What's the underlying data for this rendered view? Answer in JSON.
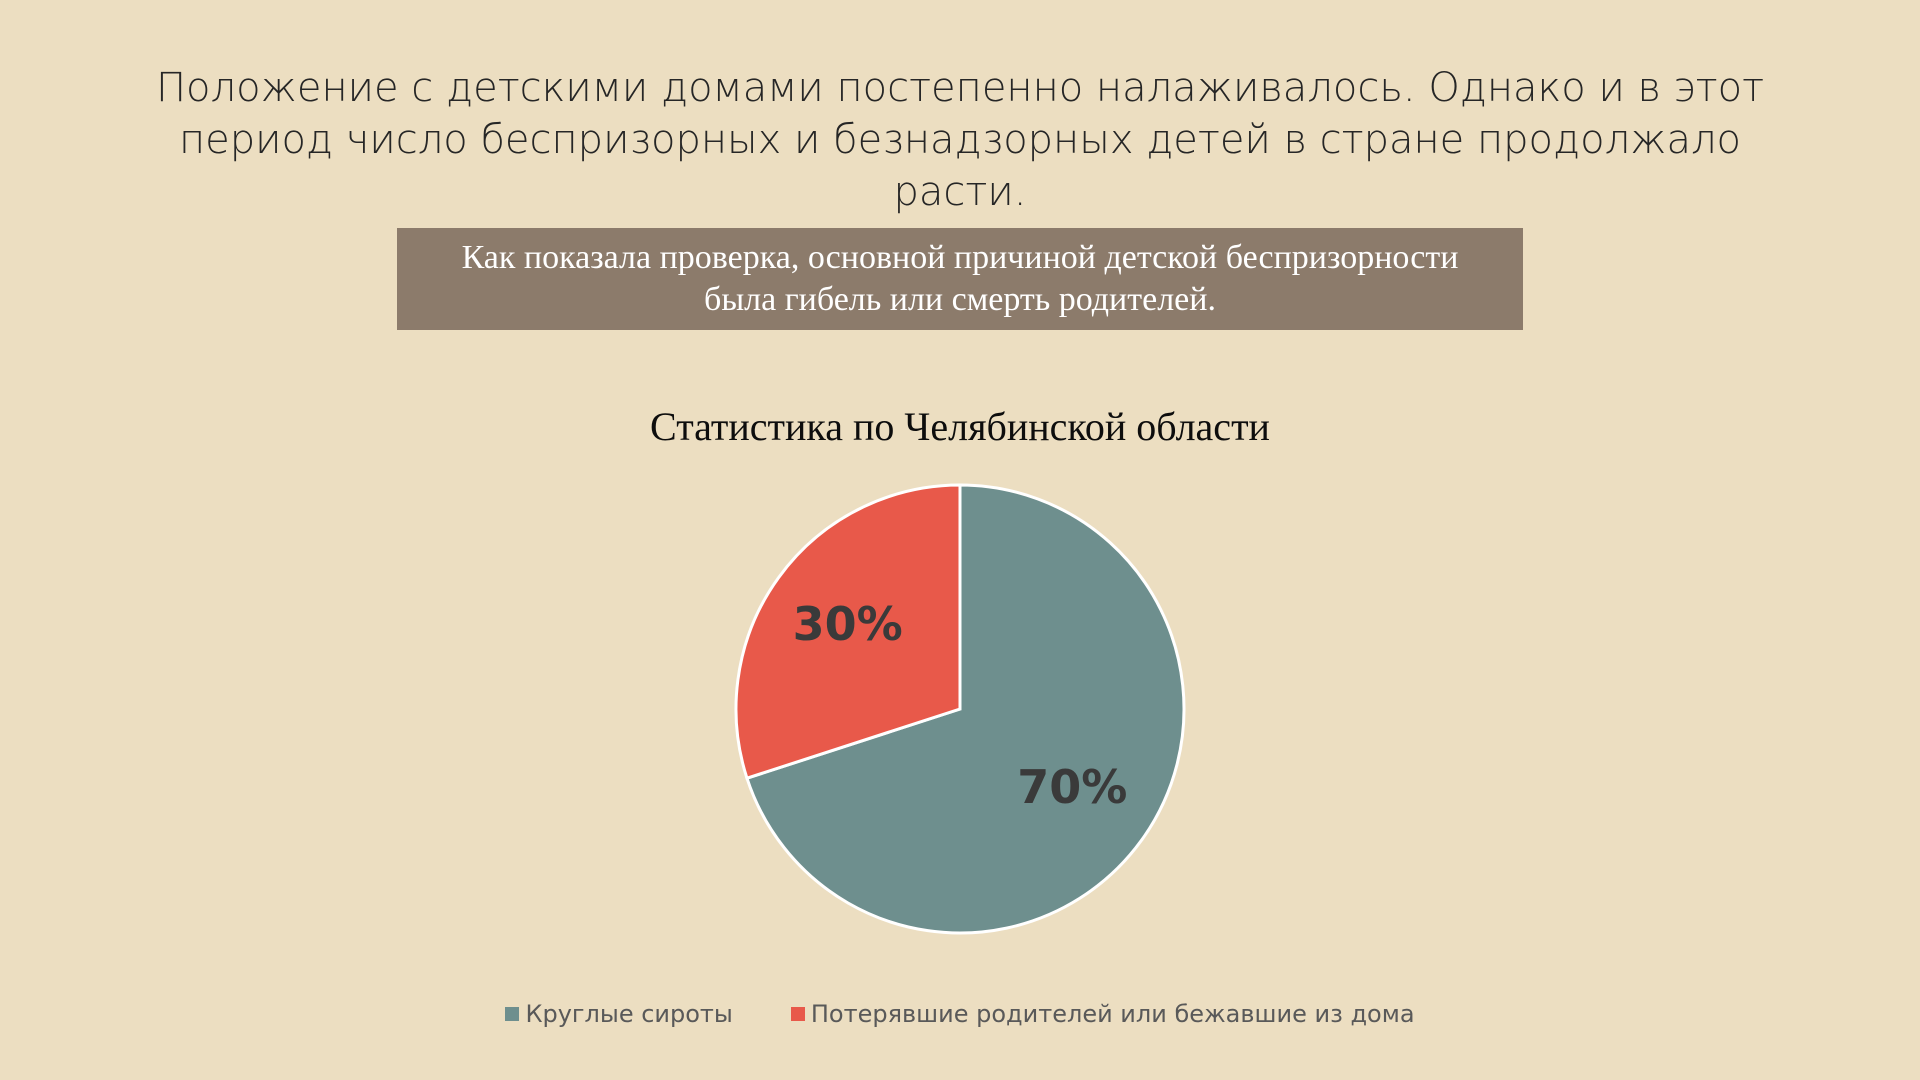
{
  "slide": {
    "heading_line1": "Положение с детскими домами постепенно налаживалось. Однако и в этот",
    "heading_line2": "период число беспризорных и безнадзорных детей в стране продолжало расти.",
    "callout_line1": "Как показала проверка, основной причиной детской беспризорности",
    "callout_line2": "была гибель или смерть родителей."
  },
  "colors": {
    "background": "#ECDEC1",
    "callout_bg": "#8C7B6B",
    "orphans": "#6E8F8E",
    "lost": "#E8594A"
  },
  "chart_data": {
    "type": "pie",
    "title": "Статистика по Челябинской области",
    "slices": [
      {
        "name": "Круглые сироты",
        "value": 70,
        "label": "70%",
        "color": "#6E8F8E"
      },
      {
        "name": "Потерявшие родителей или бежавшие из дома",
        "value": 30,
        "label": "30%",
        "color": "#E8594A"
      }
    ],
    "start_angle": "12 o'clock",
    "direction": "clockwise",
    "legend_position": "bottom"
  }
}
